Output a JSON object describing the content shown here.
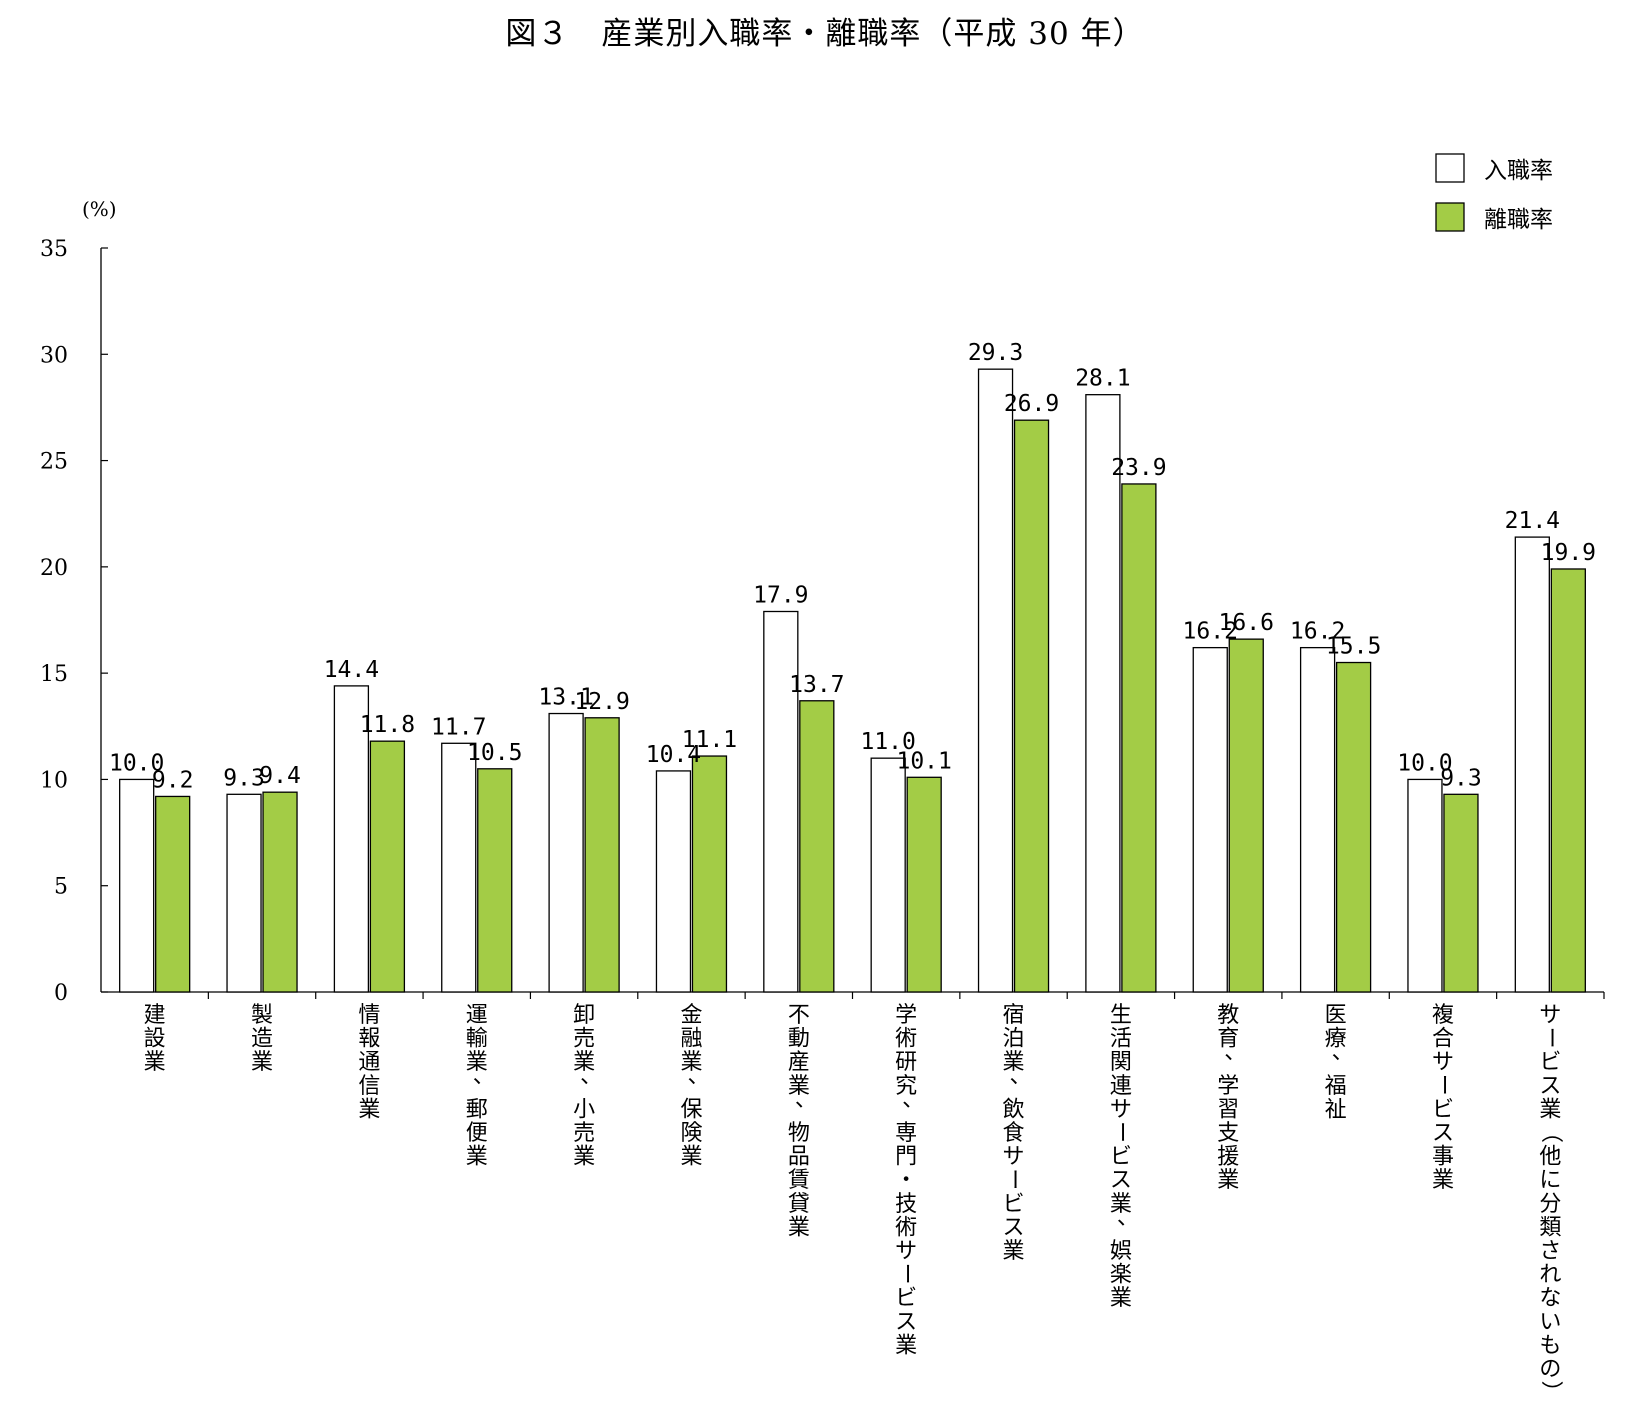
{
  "chart_data": {
    "type": "bar",
    "title": "図３　産業別入職率・離職率（平成 30 年）",
    "unit_label": "(%)",
    "ylim": [
      0,
      35
    ],
    "yticks": [
      0,
      5,
      10,
      15,
      20,
      25,
      30,
      35
    ],
    "categories": [
      "建設業",
      "製造業",
      "情報通信業",
      "運輸業，郵便業",
      "卸売業，小売業",
      "金融業，保険業",
      "不動産業，物品賃貸業",
      "学術研究，専門・技術サービス業",
      "宿泊業，飲食サービス業",
      "生活関連サービス業，娯楽業",
      "教育，学習支援業",
      "医療，福祉",
      "複合サービス事業",
      "サービス業（他に分類されないもの）"
    ],
    "series": [
      {
        "name": "入職率",
        "color": "#ffffff",
        "values": [
          10.0,
          9.3,
          14.4,
          11.7,
          13.1,
          10.4,
          17.9,
          11.0,
          29.3,
          28.1,
          16.2,
          16.2,
          10.0,
          21.4
        ]
      },
      {
        "name": "離職率",
        "color": "#a3cc46",
        "values": [
          9.2,
          9.4,
          11.8,
          10.5,
          12.9,
          11.1,
          13.7,
          10.1,
          26.9,
          23.9,
          16.6,
          15.5,
          9.3,
          19.9
        ]
      }
    ],
    "legend": "top-right",
    "grid": false,
    "data_labels": true
  }
}
